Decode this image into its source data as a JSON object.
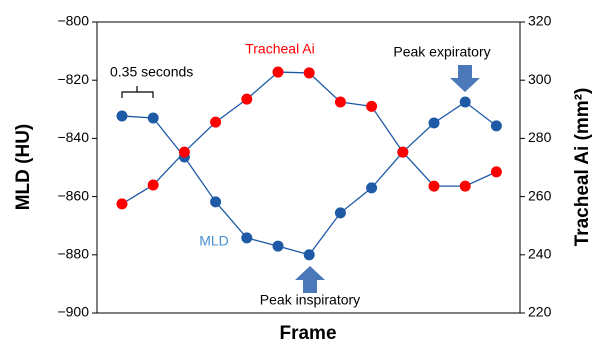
{
  "chart_data": {
    "type": "line",
    "categories": [
      null,
      null,
      null,
      null,
      null,
      null,
      null,
      null,
      null,
      null,
      null,
      null,
      null
    ],
    "series": [
      {
        "name": "MLD",
        "color": "#1f5aa6",
        "values": [
          -832.3,
          -833,
          -846.4,
          -861.8,
          -874.2,
          -877,
          -880,
          -865.6,
          -857,
          -844.7,
          -834.7,
          -827.5,
          -835.7
        ]
      },
      {
        "name": "Tracheal Ai",
        "color": "#ff0000",
        "axis": "y2",
        "values": [
          257.5,
          264,
          275.3,
          285.6,
          293.5,
          302.8,
          302.5,
          292.5,
          291,
          275.3,
          263.6,
          263.6,
          268.5
        ]
      }
    ],
    "ylabel": "MLD (HU)",
    "y2label": "Tracheal Ai (mm²)",
    "xlabel": "Frame",
    "ylim": [
      -900,
      -800
    ],
    "yticks": [
      {
        "value": -900,
        "label": "−900"
      },
      {
        "value": -880,
        "label": "−880"
      },
      {
        "value": -860,
        "label": "−860"
      },
      {
        "value": -840,
        "label": "−840"
      },
      {
        "value": -820,
        "label": "−820"
      },
      {
        "value": -800,
        "label": "−800"
      }
    ],
    "y2lim": [
      220,
      320
    ],
    "y2ticks": [
      220,
      240,
      260,
      280,
      300,
      320
    ],
    "annotations": [
      "0.35 seconds",
      "Tracheal Ai",
      "MLD",
      "Peak expiratory",
      "Peak inspiratory"
    ]
  }
}
